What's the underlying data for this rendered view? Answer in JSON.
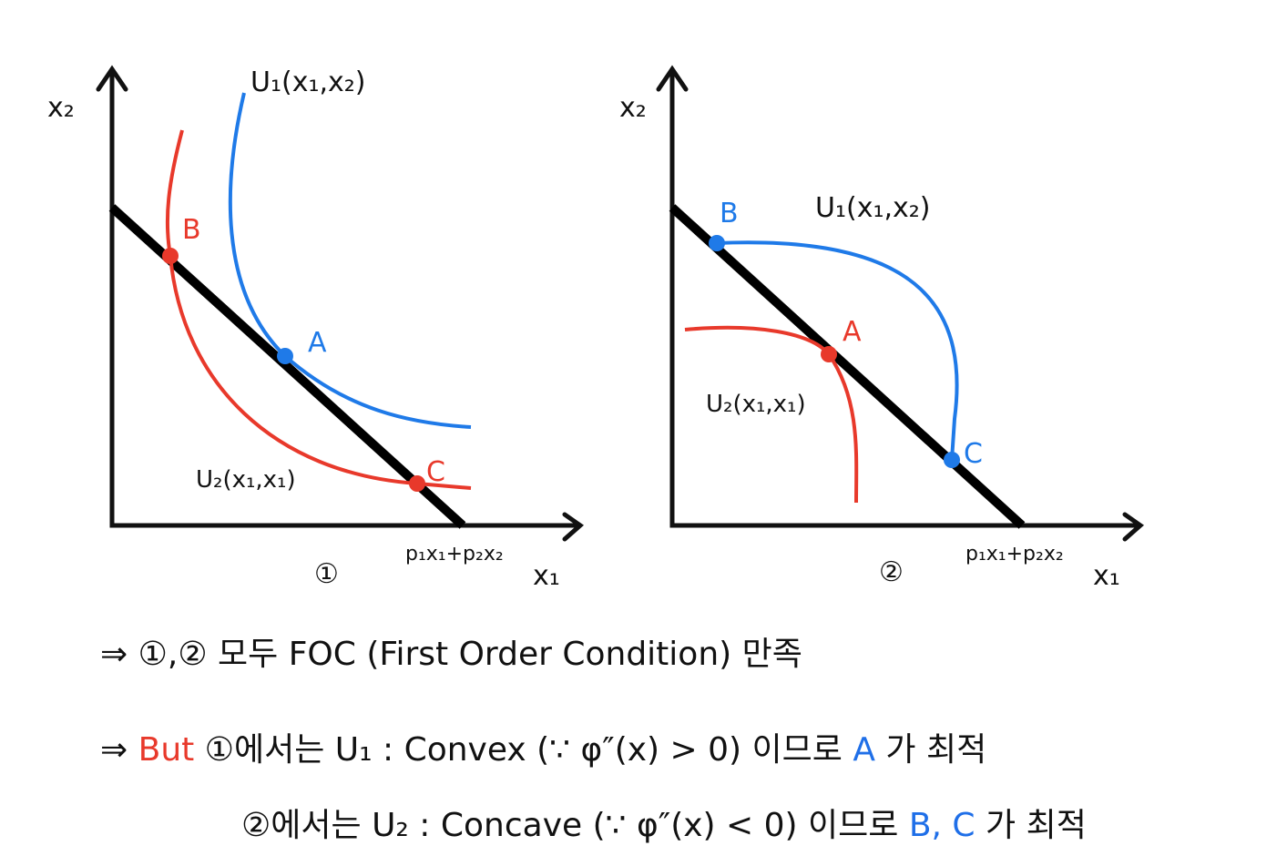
{
  "panels": [
    {
      "y_axis_label": "x₂",
      "x_axis_label": "x₁",
      "u1_label": "U₁(x₁,x₂)",
      "u2_label": "U₂(x₁,x₁)",
      "budget_label": "p₁x₁+p₂x₂",
      "number": "①",
      "points": [
        {
          "label": "B"
        },
        {
          "label": "A"
        },
        {
          "label": "C"
        }
      ]
    },
    {
      "y_axis_label": "x₂",
      "x_axis_label": "x₁",
      "u1_label": "U₁(x₁,x₂)",
      "u2_label": "U₂(x₁,x₁)",
      "budget_label": "p₁x₁+p₂x₂",
      "number": "②",
      "points": [
        {
          "label": "B"
        },
        {
          "label": "A"
        },
        {
          "label": "C"
        }
      ]
    }
  ],
  "notes": [
    [
      {
        "text": "⇒ ①,② 모두 FOC (First Order Condition) 만족"
      }
    ],
    [
      {
        "text": "⇒"
      },
      {
        "text": "But",
        "color": "#e8392b"
      },
      {
        "text": "①에서는 U₁ : Convex (∵ φ″(x) > 0) 이므로"
      },
      {
        "text": "A",
        "color": "#1f6fe8"
      },
      {
        "text": "가 최적"
      }
    ],
    [
      {
        "text": "②에서는 U₂ : Concave (∵ φ″(x) < 0) 이므로"
      },
      {
        "text": "B, C",
        "color": "#1f6fe8"
      },
      {
        "text": "가 최적"
      }
    ]
  ]
}
